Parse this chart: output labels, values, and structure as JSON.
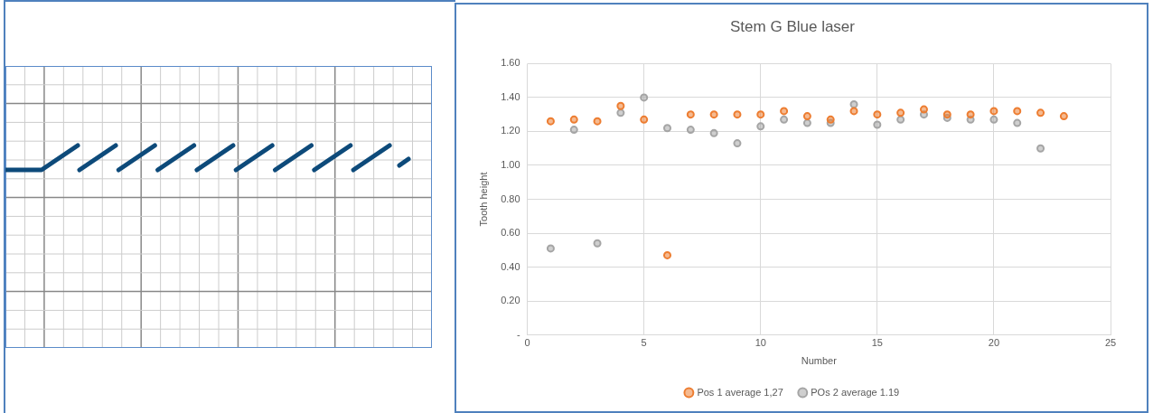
{
  "chart_data": {
    "type": "scatter",
    "title": "Stem G Blue laser",
    "xlabel": "Number",
    "ylabel": "Tooth height",
    "x": [
      1,
      2,
      3,
      4,
      5,
      6,
      7,
      8,
      9,
      10,
      11,
      12,
      13,
      14,
      15,
      16,
      17,
      18,
      19,
      20,
      21,
      22,
      23
    ],
    "series": [
      {
        "name": "Pos 1 average 1,27",
        "color": "#ed7d31",
        "values": [
          1.26,
          1.27,
          1.26,
          1.35,
          1.27,
          0.47,
          1.3,
          1.3,
          1.3,
          1.3,
          1.32,
          1.29,
          1.27,
          1.32,
          1.3,
          1.31,
          1.33,
          1.3,
          1.3,
          1.32,
          1.32,
          1.31,
          1.29
        ]
      },
      {
        "name": "POs 2 average 1.19",
        "color": "#a5a5a5",
        "values": [
          0.51,
          1.21,
          0.54,
          1.31,
          1.4,
          1.22,
          1.21,
          1.19,
          1.13,
          1.23,
          1.27,
          1.25,
          1.25,
          1.36,
          1.24,
          1.27,
          1.3,
          1.28,
          1.27,
          1.27,
          1.25,
          1.1,
          null
        ]
      }
    ],
    "xlim": [
      0,
      25
    ],
    "xticks": [
      0,
      5,
      10,
      15,
      20,
      25
    ],
    "ylim": [
      0,
      1.6
    ],
    "yticks": [
      {
        "value": 0,
        "label": "-"
      },
      {
        "value": 0.2,
        "label": "0.20"
      },
      {
        "value": 0.4,
        "label": "0.40"
      },
      {
        "value": 0.6,
        "label": "0.60"
      },
      {
        "value": 0.8,
        "label": "0.80"
      },
      {
        "value": 1.0,
        "label": "1.00"
      },
      {
        "value": 1.2,
        "label": "1.20"
      },
      {
        "value": 1.4,
        "label": "1.40"
      },
      {
        "value": 1.6,
        "label": "1.60"
      }
    ],
    "grid": true,
    "legend": "bottom",
    "marker": "circle"
  }
}
